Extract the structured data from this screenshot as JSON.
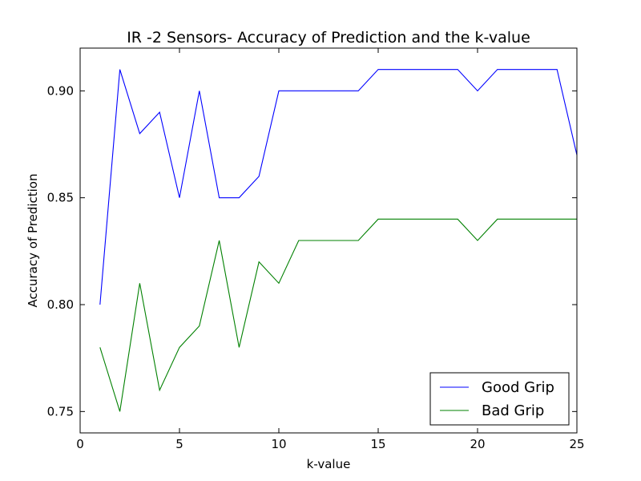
{
  "chart_data": {
    "type": "line",
    "title": "IR -2 Sensors- Accuracy of Prediction and the k-value",
    "xlabel": "k-value",
    "ylabel": "Accuracy of Prediction",
    "xlim": [
      0,
      25
    ],
    "ylim": [
      0.74,
      0.92
    ],
    "xticks": [
      0,
      5,
      10,
      15,
      20,
      25
    ],
    "xtick_labels": [
      "0",
      "5",
      "10",
      "15",
      "20",
      "25"
    ],
    "yticks": [
      0.75,
      0.8,
      0.85,
      0.9
    ],
    "ytick_labels": [
      "0.75",
      "0.80",
      "0.85",
      "0.90"
    ],
    "grid": false,
    "legend_position": "bottom-right",
    "x": [
      1,
      2,
      3,
      4,
      5,
      6,
      7,
      8,
      9,
      10,
      11,
      12,
      13,
      14,
      15,
      16,
      17,
      18,
      19,
      20,
      21,
      22,
      23,
      24,
      25
    ],
    "series": [
      {
        "name": "Good Grip",
        "color": "#0000ff",
        "values": [
          0.8,
          0.91,
          0.88,
          0.89,
          0.85,
          0.9,
          0.85,
          0.85,
          0.86,
          0.9,
          0.9,
          0.9,
          0.9,
          0.9,
          0.91,
          0.91,
          0.91,
          0.91,
          0.91,
          0.9,
          0.91,
          0.91,
          0.91,
          0.91,
          0.87
        ]
      },
      {
        "name": "Bad Grip",
        "color": "#008000",
        "values": [
          0.78,
          0.75,
          0.81,
          0.76,
          0.78,
          0.79,
          0.83,
          0.78,
          0.82,
          0.81,
          0.83,
          0.83,
          0.83,
          0.83,
          0.84,
          0.84,
          0.84,
          0.84,
          0.84,
          0.83,
          0.84,
          0.84,
          0.84,
          0.84,
          0.84
        ]
      }
    ]
  }
}
